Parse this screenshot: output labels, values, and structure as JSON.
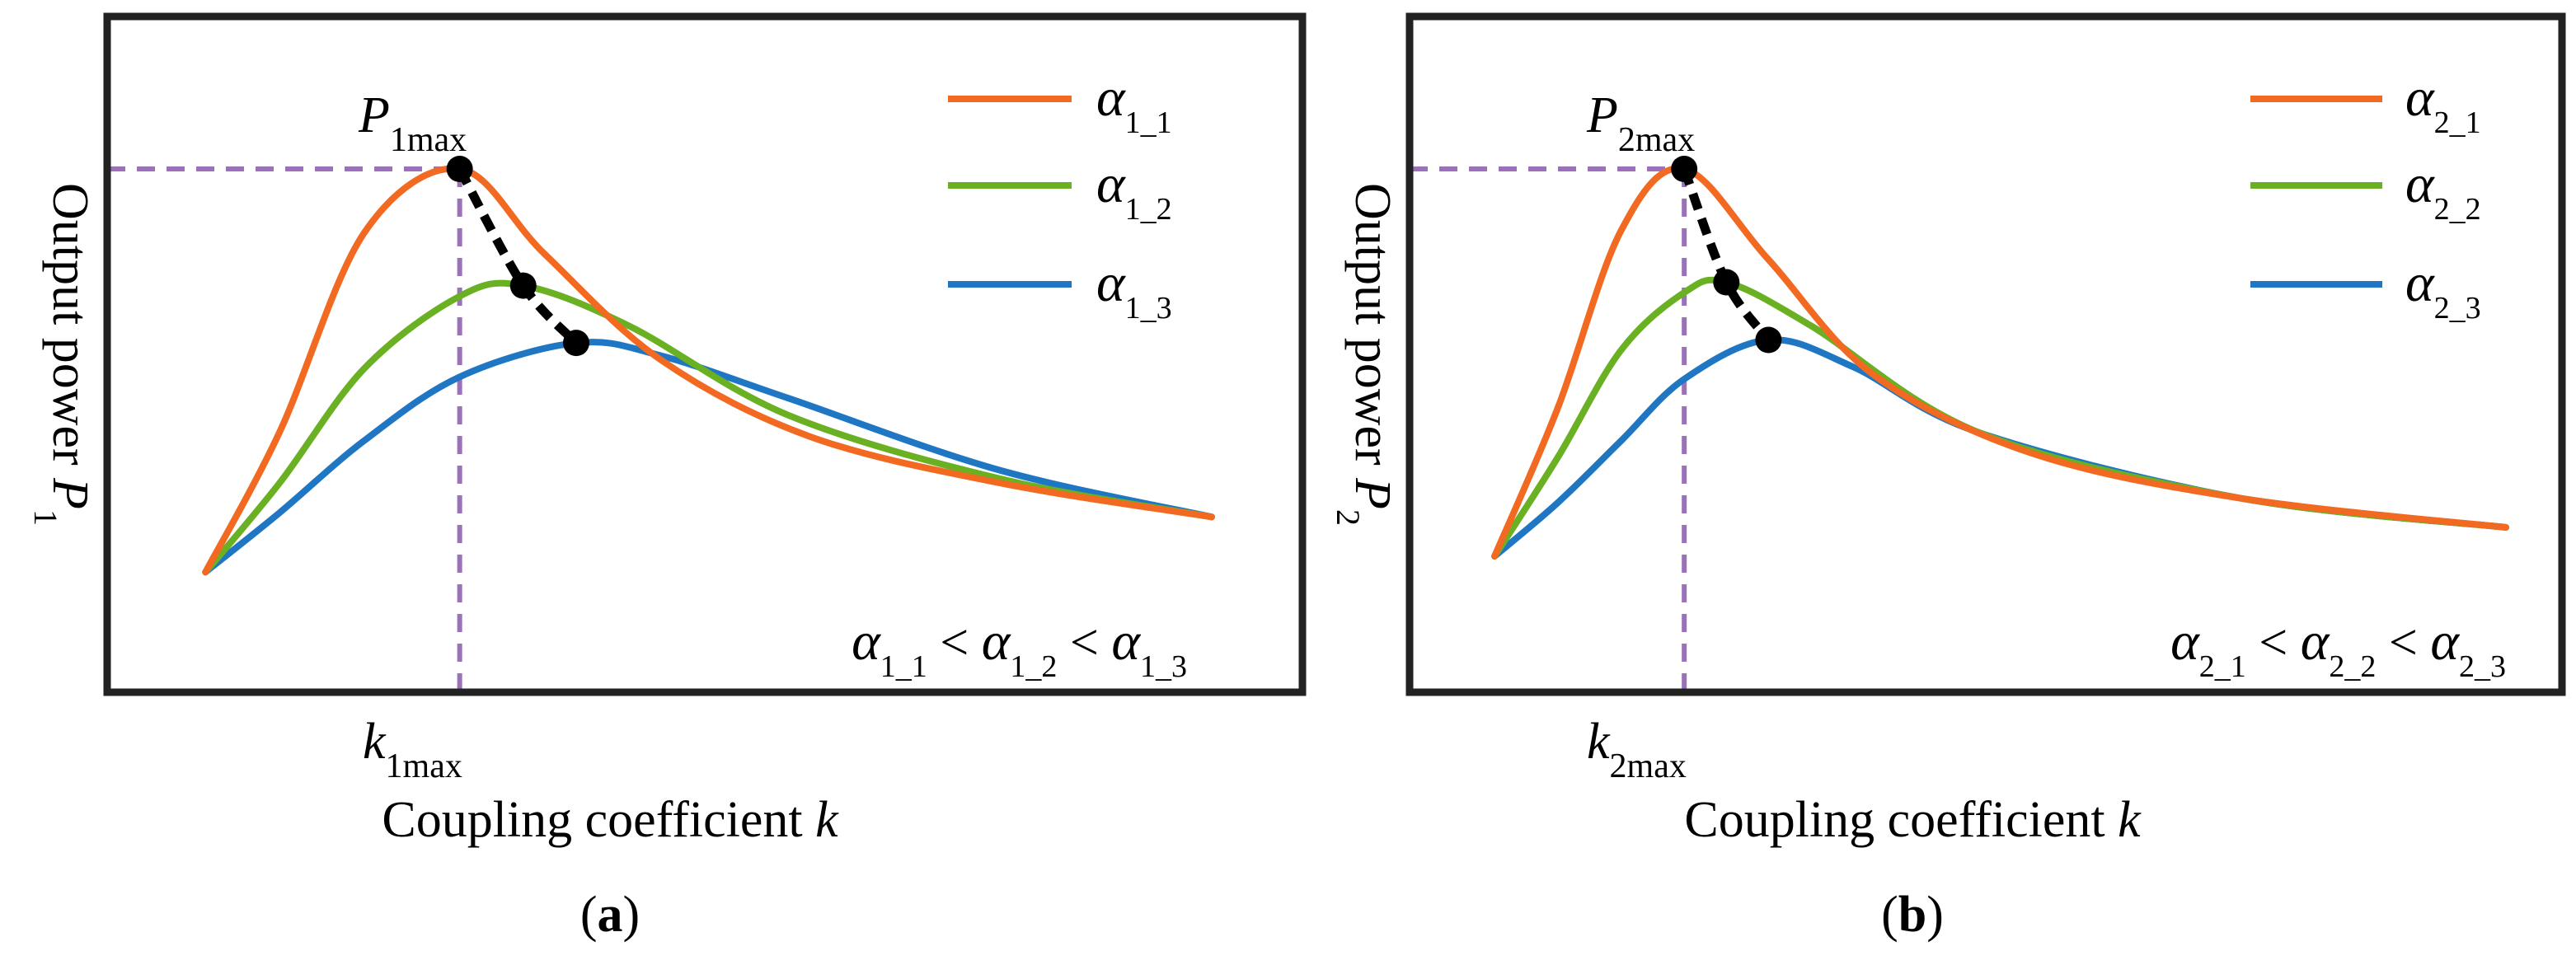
{
  "chart_data": [
    {
      "type": "line",
      "panel_label": "(a)",
      "panel_letter": "a",
      "xlabel": "Coupling coefficient k",
      "ylabel": "Output power P1",
      "x_marker_label": "k1max",
      "peak_label": "P1max",
      "annotation": "α1_1 < α1_2 < α1_3",
      "xlim": [
        0,
        1
      ],
      "ylim": [
        0,
        1
      ],
      "grid": false,
      "legend_position": "top-right",
      "peak_marker": {
        "x": 0.29,
        "y": 1.0
      },
      "peaks": [
        {
          "x": 0.29,
          "y": 1.0
        },
        {
          "x": 0.35,
          "y": 0.725
        },
        {
          "x": 0.4,
          "y": 0.59
        }
      ],
      "series": [
        {
          "name": "α1_1",
          "color": "#f26a21",
          "x": [
            0.05,
            0.12,
            0.2,
            0.29,
            0.37,
            0.48,
            0.62,
            0.8,
            1.0
          ],
          "y": [
            0.05,
            0.38,
            0.85,
            1.0,
            0.8,
            0.55,
            0.37,
            0.26,
            0.18
          ]
        },
        {
          "name": "α1_2",
          "color": "#6ab023",
          "x": [
            0.05,
            0.12,
            0.2,
            0.29,
            0.35,
            0.45,
            0.6,
            0.8,
            1.0
          ],
          "y": [
            0.05,
            0.26,
            0.53,
            0.7,
            0.725,
            0.63,
            0.42,
            0.27,
            0.18
          ]
        },
        {
          "name": "α1_3",
          "color": "#1f77c4",
          "x": [
            0.05,
            0.12,
            0.2,
            0.29,
            0.4,
            0.48,
            0.6,
            0.8,
            1.0
          ],
          "y": [
            0.05,
            0.19,
            0.36,
            0.51,
            0.59,
            0.56,
            0.46,
            0.29,
            0.18
          ]
        }
      ]
    },
    {
      "type": "line",
      "panel_label": "(b)",
      "panel_letter": "b",
      "xlabel": "Coupling coefficient k",
      "ylabel": "Output power P2",
      "x_marker_label": "k2max",
      "peak_label": "P2max",
      "annotation": "α2_1 < α2_2 < α2_3",
      "xlim": [
        0,
        1
      ],
      "ylim": [
        0,
        1
      ],
      "grid": false,
      "legend_position": "top-right",
      "peak_marker": {
        "x": 0.22,
        "y": 1.0
      },
      "peaks": [
        {
          "x": 0.22,
          "y": 1.0
        },
        {
          "x": 0.26,
          "y": 0.725
        },
        {
          "x": 0.3,
          "y": 0.585
        }
      ],
      "series": [
        {
          "name": "α2_1",
          "color": "#f26a21",
          "x": [
            0.04,
            0.1,
            0.16,
            0.22,
            0.3,
            0.4,
            0.55,
            0.75,
            1.0
          ],
          "y": [
            0.06,
            0.42,
            0.85,
            1.0,
            0.78,
            0.5,
            0.31,
            0.2,
            0.13
          ]
        },
        {
          "name": "α2_2",
          "color": "#6ab023",
          "x": [
            0.04,
            0.1,
            0.16,
            0.22,
            0.26,
            0.34,
            0.5,
            0.75,
            1.0
          ],
          "y": [
            0.06,
            0.3,
            0.56,
            0.7,
            0.725,
            0.62,
            0.36,
            0.2,
            0.13
          ]
        },
        {
          "name": "α2_3",
          "color": "#1f77c4",
          "x": [
            0.04,
            0.1,
            0.16,
            0.22,
            0.3,
            0.38,
            0.5,
            0.75,
            1.0
          ],
          "y": [
            0.06,
            0.19,
            0.34,
            0.49,
            0.585,
            0.52,
            0.36,
            0.2,
            0.13
          ]
        }
      ]
    }
  ],
  "style": {
    "frame_color": "#222222",
    "guide_color": "#9b72b9",
    "peak_path_color": "#000000"
  }
}
